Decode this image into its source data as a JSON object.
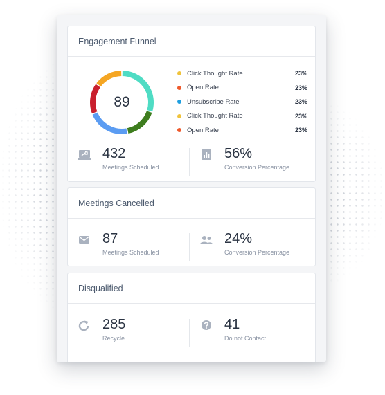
{
  "engagement": {
    "title": "Engagement Funnel",
    "score": "89",
    "donut": [
      {
        "value": 30,
        "color": "#4fdcc4"
      },
      {
        "value": 17,
        "color": "#3e7d1e"
      },
      {
        "value": 22,
        "color": "#5b9cf2"
      },
      {
        "value": 16,
        "color": "#c9202e"
      },
      {
        "value": 15,
        "color": "#f5a623"
      }
    ],
    "legend": [
      {
        "label": "Click Thought Rate",
        "value": "23%",
        "color": "#f0c33c"
      },
      {
        "label": "Open Rate",
        "value": "23%",
        "color": "#ef5a2c"
      },
      {
        "label": "Unsubscribe Rate",
        "value": "23%",
        "color": "#1f9fe0"
      },
      {
        "label": "Click Thought Rate",
        "value": "23%",
        "color": "#f0c33c"
      },
      {
        "label": "Open Rate",
        "value": "23%",
        "color": "#ef5a2c"
      }
    ],
    "stats": [
      {
        "value": "432",
        "label": "Meetings Scheduled",
        "icon": "laptop-share-icon"
      },
      {
        "value": "56%",
        "label": "Conversion Percentage",
        "icon": "bar-chart-icon"
      }
    ]
  },
  "cancelled": {
    "title": "Meetings Cancelled",
    "stats": [
      {
        "value": "87",
        "label": "Meetings Scheduled",
        "icon": "envelope-icon"
      },
      {
        "value": "24%",
        "label": "Conversion Percentage",
        "icon": "users-icon"
      }
    ]
  },
  "disqualified": {
    "title": "Disqualified",
    "stats": [
      {
        "value": "285",
        "label": "Recycle",
        "icon": "refresh-icon"
      },
      {
        "value": "41",
        "label": "Do not Contact",
        "icon": "question-circle-icon"
      }
    ]
  }
}
